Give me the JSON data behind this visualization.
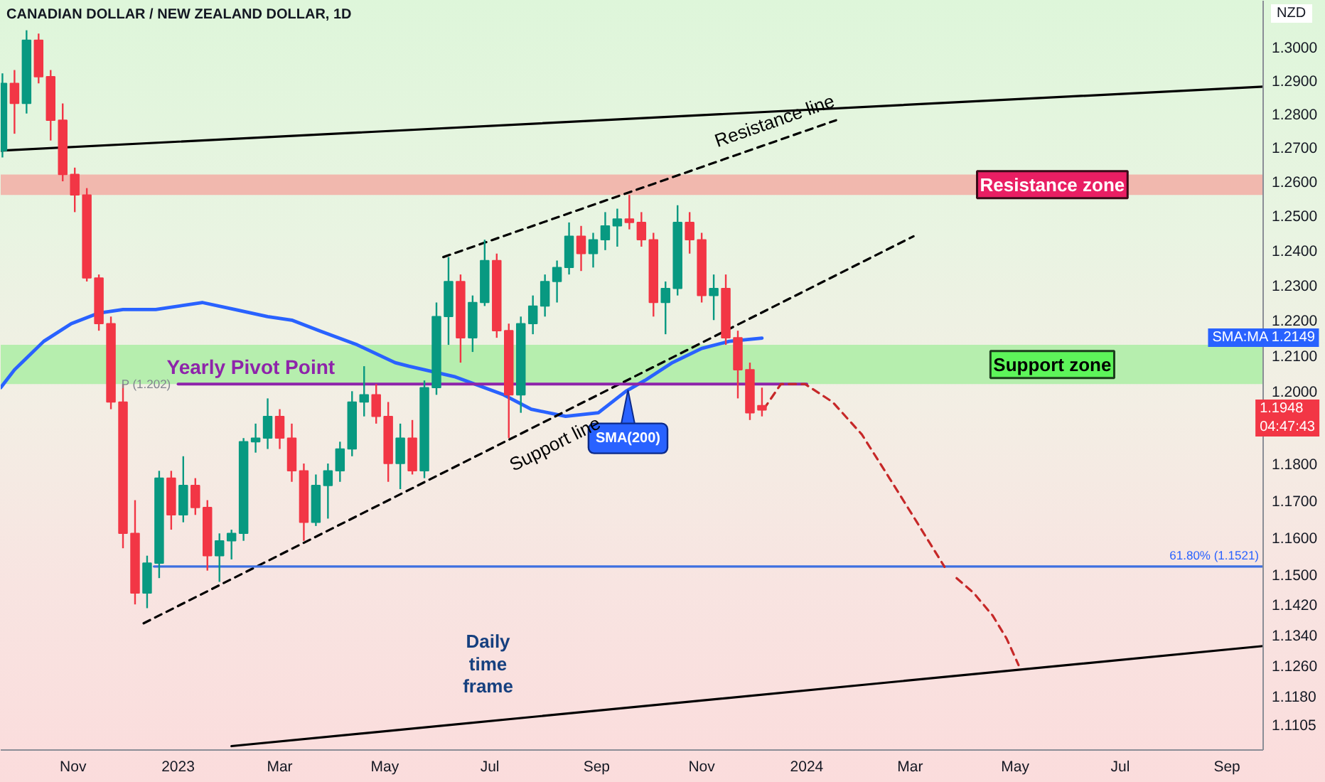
{
  "chart_data": {
    "type": "candlestick",
    "title": "CANADIAN DOLLAR / NEW ZEALAND DOLLAR, 1D",
    "ylabel": "NZD",
    "log": "y",
    "xlim": [
      "2022-09-20",
      "2024-09-22"
    ],
    "ylim": [
      1.104,
      1.314
    ],
    "xticks": [
      {
        "value": "2022-11-01",
        "label": "Nov"
      },
      {
        "value": "2023-01-01",
        "label": "2023"
      },
      {
        "value": "2023-03-01",
        "label": "Mar"
      },
      {
        "value": "2023-05-01",
        "label": "May"
      },
      {
        "value": "2023-07-01",
        "label": "Jul"
      },
      {
        "value": "2023-09-01",
        "label": "Sep"
      },
      {
        "value": "2023-11-01",
        "label": "Nov"
      },
      {
        "value": "2024-01-01",
        "label": "2024"
      },
      {
        "value": "2024-03-01",
        "label": "Mar"
      },
      {
        "value": "2024-05-01",
        "label": "May"
      },
      {
        "value": "2024-07-01",
        "label": "Jul"
      },
      {
        "value": "2024-09-01",
        "label": "Sep"
      }
    ],
    "yticks": [
      {
        "value": 1.3,
        "label": "1.3000"
      },
      {
        "value": 1.29,
        "label": "1.2900"
      },
      {
        "value": 1.28,
        "label": "1.2800"
      },
      {
        "value": 1.27,
        "label": "1.2700"
      },
      {
        "value": 1.26,
        "label": "1.2600"
      },
      {
        "value": 1.25,
        "label": "1.2500"
      },
      {
        "value": 1.24,
        "label": "1.2400"
      },
      {
        "value": 1.23,
        "label": "1.2300"
      },
      {
        "value": 1.22,
        "label": "1.2200"
      },
      {
        "value": 1.21,
        "label": "1.2100"
      },
      {
        "value": 1.2,
        "label": "1.2000"
      },
      {
        "value": 1.18,
        "label": "1.1800"
      },
      {
        "value": 1.17,
        "label": "1.1700"
      },
      {
        "value": 1.16,
        "label": "1.1600"
      },
      {
        "value": 1.15,
        "label": "1.1500"
      },
      {
        "value": 1.142,
        "label": "1.1420"
      },
      {
        "value": 1.134,
        "label": "1.1340"
      },
      {
        "value": 1.126,
        "label": "1.1260"
      },
      {
        "value": 1.118,
        "label": "1.1180"
      },
      {
        "value": 1.1105,
        "label": "1.1105"
      }
    ],
    "x": [
      "2022-09-21",
      "2022-09-28",
      "2022-10-05",
      "2022-10-12",
      "2022-10-19",
      "2022-10-26",
      "2022-11-02",
      "2022-11-09",
      "2022-11-16",
      "2022-11-23",
      "2022-11-30",
      "2022-12-07",
      "2022-12-14",
      "2022-12-21",
      "2022-12-28",
      "2023-01-04",
      "2023-01-11",
      "2023-01-18",
      "2023-01-25",
      "2023-02-01",
      "2023-02-08",
      "2023-02-15",
      "2023-02-22",
      "2023-03-01",
      "2023-03-08",
      "2023-03-15",
      "2023-03-22",
      "2023-03-29",
      "2023-04-05",
      "2023-04-12",
      "2023-04-19",
      "2023-04-26",
      "2023-05-03",
      "2023-05-10",
      "2023-05-17",
      "2023-05-24",
      "2023-05-31",
      "2023-06-07",
      "2023-06-14",
      "2023-06-21",
      "2023-06-28",
      "2023-07-05",
      "2023-07-12",
      "2023-07-19",
      "2023-07-26",
      "2023-08-02",
      "2023-08-09",
      "2023-08-16",
      "2023-08-23",
      "2023-08-30",
      "2023-09-06",
      "2023-09-13",
      "2023-09-20",
      "2023-09-27",
      "2023-10-04",
      "2023-10-11",
      "2023-10-18",
      "2023-10-25",
      "2023-11-01",
      "2023-11-08",
      "2023-11-15",
      "2023-11-22",
      "2023-11-29",
      "2023-12-06"
    ],
    "ohlc": [
      [
        1.269,
        1.292,
        1.267,
        1.289
      ],
      [
        1.289,
        1.293,
        1.274,
        1.283
      ],
      [
        1.283,
        1.305,
        1.28,
        1.302
      ],
      [
        1.302,
        1.304,
        1.289,
        1.291
      ],
      [
        1.291,
        1.293,
        1.272,
        1.278
      ],
      [
        1.278,
        1.283,
        1.26,
        1.262
      ],
      [
        1.262,
        1.264,
        1.251,
        1.256
      ],
      [
        1.256,
        1.258,
        1.231,
        1.232
      ],
      [
        1.232,
        1.233,
        1.217,
        1.219
      ],
      [
        1.219,
        1.221,
        1.195,
        1.197
      ],
      [
        1.197,
        1.202,
        1.157,
        1.161
      ],
      [
        1.161,
        1.17,
        1.142,
        1.145
      ],
      [
        1.145,
        1.155,
        1.141,
        1.153
      ],
      [
        1.153,
        1.178,
        1.149,
        1.176
      ],
      [
        1.176,
        1.178,
        1.162,
        1.166
      ],
      [
        1.166,
        1.182,
        1.164,
        1.174
      ],
      [
        1.174,
        1.176,
        1.166,
        1.168
      ],
      [
        1.168,
        1.17,
        1.151,
        1.155
      ],
      [
        1.155,
        1.161,
        1.148,
        1.159
      ],
      [
        1.159,
        1.162,
        1.154,
        1.161
      ],
      [
        1.161,
        1.187,
        1.159,
        1.186
      ],
      [
        1.186,
        1.191,
        1.183,
        1.187
      ],
      [
        1.187,
        1.198,
        1.184,
        1.193
      ],
      [
        1.193,
        1.195,
        1.184,
        1.187
      ],
      [
        1.187,
        1.191,
        1.175,
        1.178
      ],
      [
        1.178,
        1.18,
        1.159,
        1.164
      ],
      [
        1.164,
        1.177,
        1.163,
        1.174
      ],
      [
        1.174,
        1.18,
        1.165,
        1.178
      ],
      [
        1.178,
        1.186,
        1.175,
        1.184
      ],
      [
        1.184,
        1.2,
        1.182,
        1.197
      ],
      [
        1.197,
        1.207,
        1.193,
        1.199
      ],
      [
        1.199,
        1.202,
        1.191,
        1.193
      ],
      [
        1.193,
        1.197,
        1.175,
        1.18
      ],
      [
        1.18,
        1.191,
        1.173,
        1.187
      ],
      [
        1.187,
        1.192,
        1.177,
        1.178
      ],
      [
        1.178,
        1.203,
        1.176,
        1.201
      ],
      [
        1.201,
        1.225,
        1.199,
        1.221
      ],
      [
        1.221,
        1.238,
        1.213,
        1.231
      ],
      [
        1.231,
        1.233,
        1.208,
        1.215
      ],
      [
        1.215,
        1.227,
        1.211,
        1.225
      ],
      [
        1.225,
        1.243,
        1.224,
        1.237
      ],
      [
        1.237,
        1.239,
        1.215,
        1.217
      ],
      [
        1.217,
        1.219,
        1.187,
        1.199
      ],
      [
        1.199,
        1.221,
        1.194,
        1.219
      ],
      [
        1.219,
        1.227,
        1.216,
        1.224
      ],
      [
        1.224,
        1.233,
        1.221,
        1.231
      ],
      [
        1.231,
        1.237,
        1.225,
        1.235
      ],
      [
        1.235,
        1.248,
        1.233,
        1.244
      ],
      [
        1.244,
        1.247,
        1.234,
        1.239
      ],
      [
        1.239,
        1.245,
        1.235,
        1.243
      ],
      [
        1.243,
        1.251,
        1.24,
        1.247
      ],
      [
        1.247,
        1.252,
        1.241,
        1.249
      ],
      [
        1.249,
        1.256,
        1.246,
        1.248
      ],
      [
        1.248,
        1.251,
        1.241,
        1.243
      ],
      [
        1.243,
        1.245,
        1.221,
        1.225
      ],
      [
        1.225,
        1.231,
        1.216,
        1.229
      ],
      [
        1.229,
        1.253,
        1.227,
        1.248
      ],
      [
        1.248,
        1.251,
        1.239,
        1.243
      ],
      [
        1.243,
        1.245,
        1.225,
        1.227
      ],
      [
        1.227,
        1.233,
        1.22,
        1.229
      ],
      [
        1.229,
        1.233,
        1.213,
        1.215
      ],
      [
        1.215,
        1.217,
        1.198,
        1.206
      ],
      [
        1.206,
        1.208,
        1.192,
        1.194
      ],
      [
        1.196,
        1.201,
        1.193,
        1.1948
      ]
    ],
    "colors": [
      "#089981",
      "#f23645",
      "#089981",
      "#f23645",
      "#f23645",
      "#f23645",
      "#f23645",
      "#f23645",
      "#f23645",
      "#f23645",
      "#f23645",
      "#f23645",
      "#089981",
      "#089981",
      "#f23645",
      "#089981",
      "#f23645",
      "#f23645",
      "#089981",
      "#089981",
      "#089981",
      "#089981",
      "#089981",
      "#f23645",
      "#f23645",
      "#f23645",
      "#089981",
      "#089981",
      "#089981",
      "#089981",
      "#089981",
      "#f23645",
      "#f23645",
      "#089981",
      "#f23645",
      "#089981",
      "#089981",
      "#089981",
      "#f23645",
      "#089981",
      "#089981",
      "#f23645",
      "#f23645",
      "#089981",
      "#089981",
      "#089981",
      "#089981",
      "#089981",
      "#f23645",
      "#089981",
      "#089981",
      "#089981",
      "#f23645",
      "#f23645",
      "#f23645",
      "#089981",
      "#089981",
      "#f23645",
      "#f23645",
      "#089981",
      "#f23645",
      "#f23645",
      "#f23645",
      "#f23645"
    ],
    "series": [
      {
        "type": "line",
        "name": "SMA(200)",
        "color": "#2962ff",
        "x": [
          "2022-09-20",
          "2022-09-28",
          "2022-10-15",
          "2022-10-31",
          "2022-11-16",
          "2022-11-30",
          "2022-12-19",
          "2023-01-15",
          "2023-02-03",
          "2023-02-22",
          "2023-03-08",
          "2023-03-24",
          "2023-04-15",
          "2023-05-07",
          "2023-05-15",
          "2023-06-11",
          "2023-07-09",
          "2023-07-25",
          "2023-08-14",
          "2023-09-02",
          "2023-09-18",
          "2023-09-29",
          "2023-10-15",
          "2023-11-01",
          "2023-11-17",
          "2023-12-06"
        ],
        "values": [
          1.201,
          1.206,
          1.214,
          1.219,
          1.222,
          1.223,
          1.223,
          1.225,
          1.223,
          1.221,
          1.22,
          1.217,
          1.213,
          1.208,
          1.207,
          1.204,
          1.199,
          1.195,
          1.193,
          1.194,
          1.2,
          1.203,
          1.208,
          1.212,
          1.214,
          1.2149
        ]
      },
      {
        "type": "line",
        "color": "#000000",
        "line_style": "solid",
        "x": [
          "2022-09-20",
          "2024-09-22"
        ],
        "values": [
          1.269,
          1.288
        ]
      },
      {
        "type": "line",
        "color": "#000000",
        "line_style": "solid",
        "x": [
          "2023-02-01",
          "2024-09-22"
        ],
        "values": [
          1.105,
          1.131
        ]
      },
      {
        "type": "line",
        "name": "Resistance line",
        "color": "#000000",
        "line_style": "dashed",
        "x": [
          "2023-06-04",
          "2024-01-18"
        ],
        "values": [
          1.238,
          1.278
        ]
      },
      {
        "type": "line",
        "name": "Support line",
        "color": "#000000",
        "line_style": "dashed",
        "x": [
          "2022-12-12",
          "2024-03-03"
        ],
        "values": [
          1.137,
          1.244
        ]
      },
      {
        "type": "line",
        "name": "Yearly Pivot Point",
        "color": "#8e24aa",
        "line_style": "solid",
        "x": [
          "2023-01-01",
          "2024-01-01"
        ],
        "values": [
          1.202,
          1.202
        ]
      },
      {
        "type": "line",
        "color": "#3d6fe0",
        "line_style": "solid",
        "x": [
          "2022-12-18",
          "2024-09-22"
        ],
        "values": [
          1.1521,
          1.1521
        ]
      },
      {
        "type": "line",
        "color": "#c62828",
        "line_style": "dashed",
        "x": [
          "2023-12-07",
          "2023-12-17",
          "2023-12-31",
          "2024-01-16",
          "2024-02-02",
          "2024-02-18",
          "2024-03-05",
          "2024-03-21"
        ],
        "values": [
          1.195,
          1.202,
          1.202,
          1.197,
          1.188,
          1.176,
          1.164,
          1.152
        ]
      },
      {
        "type": "line",
        "color": "#c62828",
        "line_style": "dashed",
        "x": [
          "2024-03-28",
          "2024-04-07",
          "2024-04-18",
          "2024-04-26",
          "2024-05-03"
        ],
        "values": [
          1.149,
          1.145,
          1.139,
          1.133,
          1.126
        ]
      }
    ],
    "bands": [
      {
        "axis": "y",
        "from": 1.256,
        "to": 1.262,
        "label": "Resistance zone",
        "color": "#f1b8ae"
      },
      {
        "axis": "y",
        "from": 1.202,
        "to": 1.213,
        "label": "Support zone",
        "color": "#b6eeae"
      }
    ],
    "annotations": [
      "Daily time frame",
      "SMA:MA 1.2149",
      "1.1948 04:47:43",
      {
        "text": "P (1.202)",
        "x": "2023-01-01",
        "y": 1.202
      },
      {
        "text": "61.80% (1.1521)",
        "x": "2024-09-22",
        "y": 1.1521
      }
    ]
  }
}
